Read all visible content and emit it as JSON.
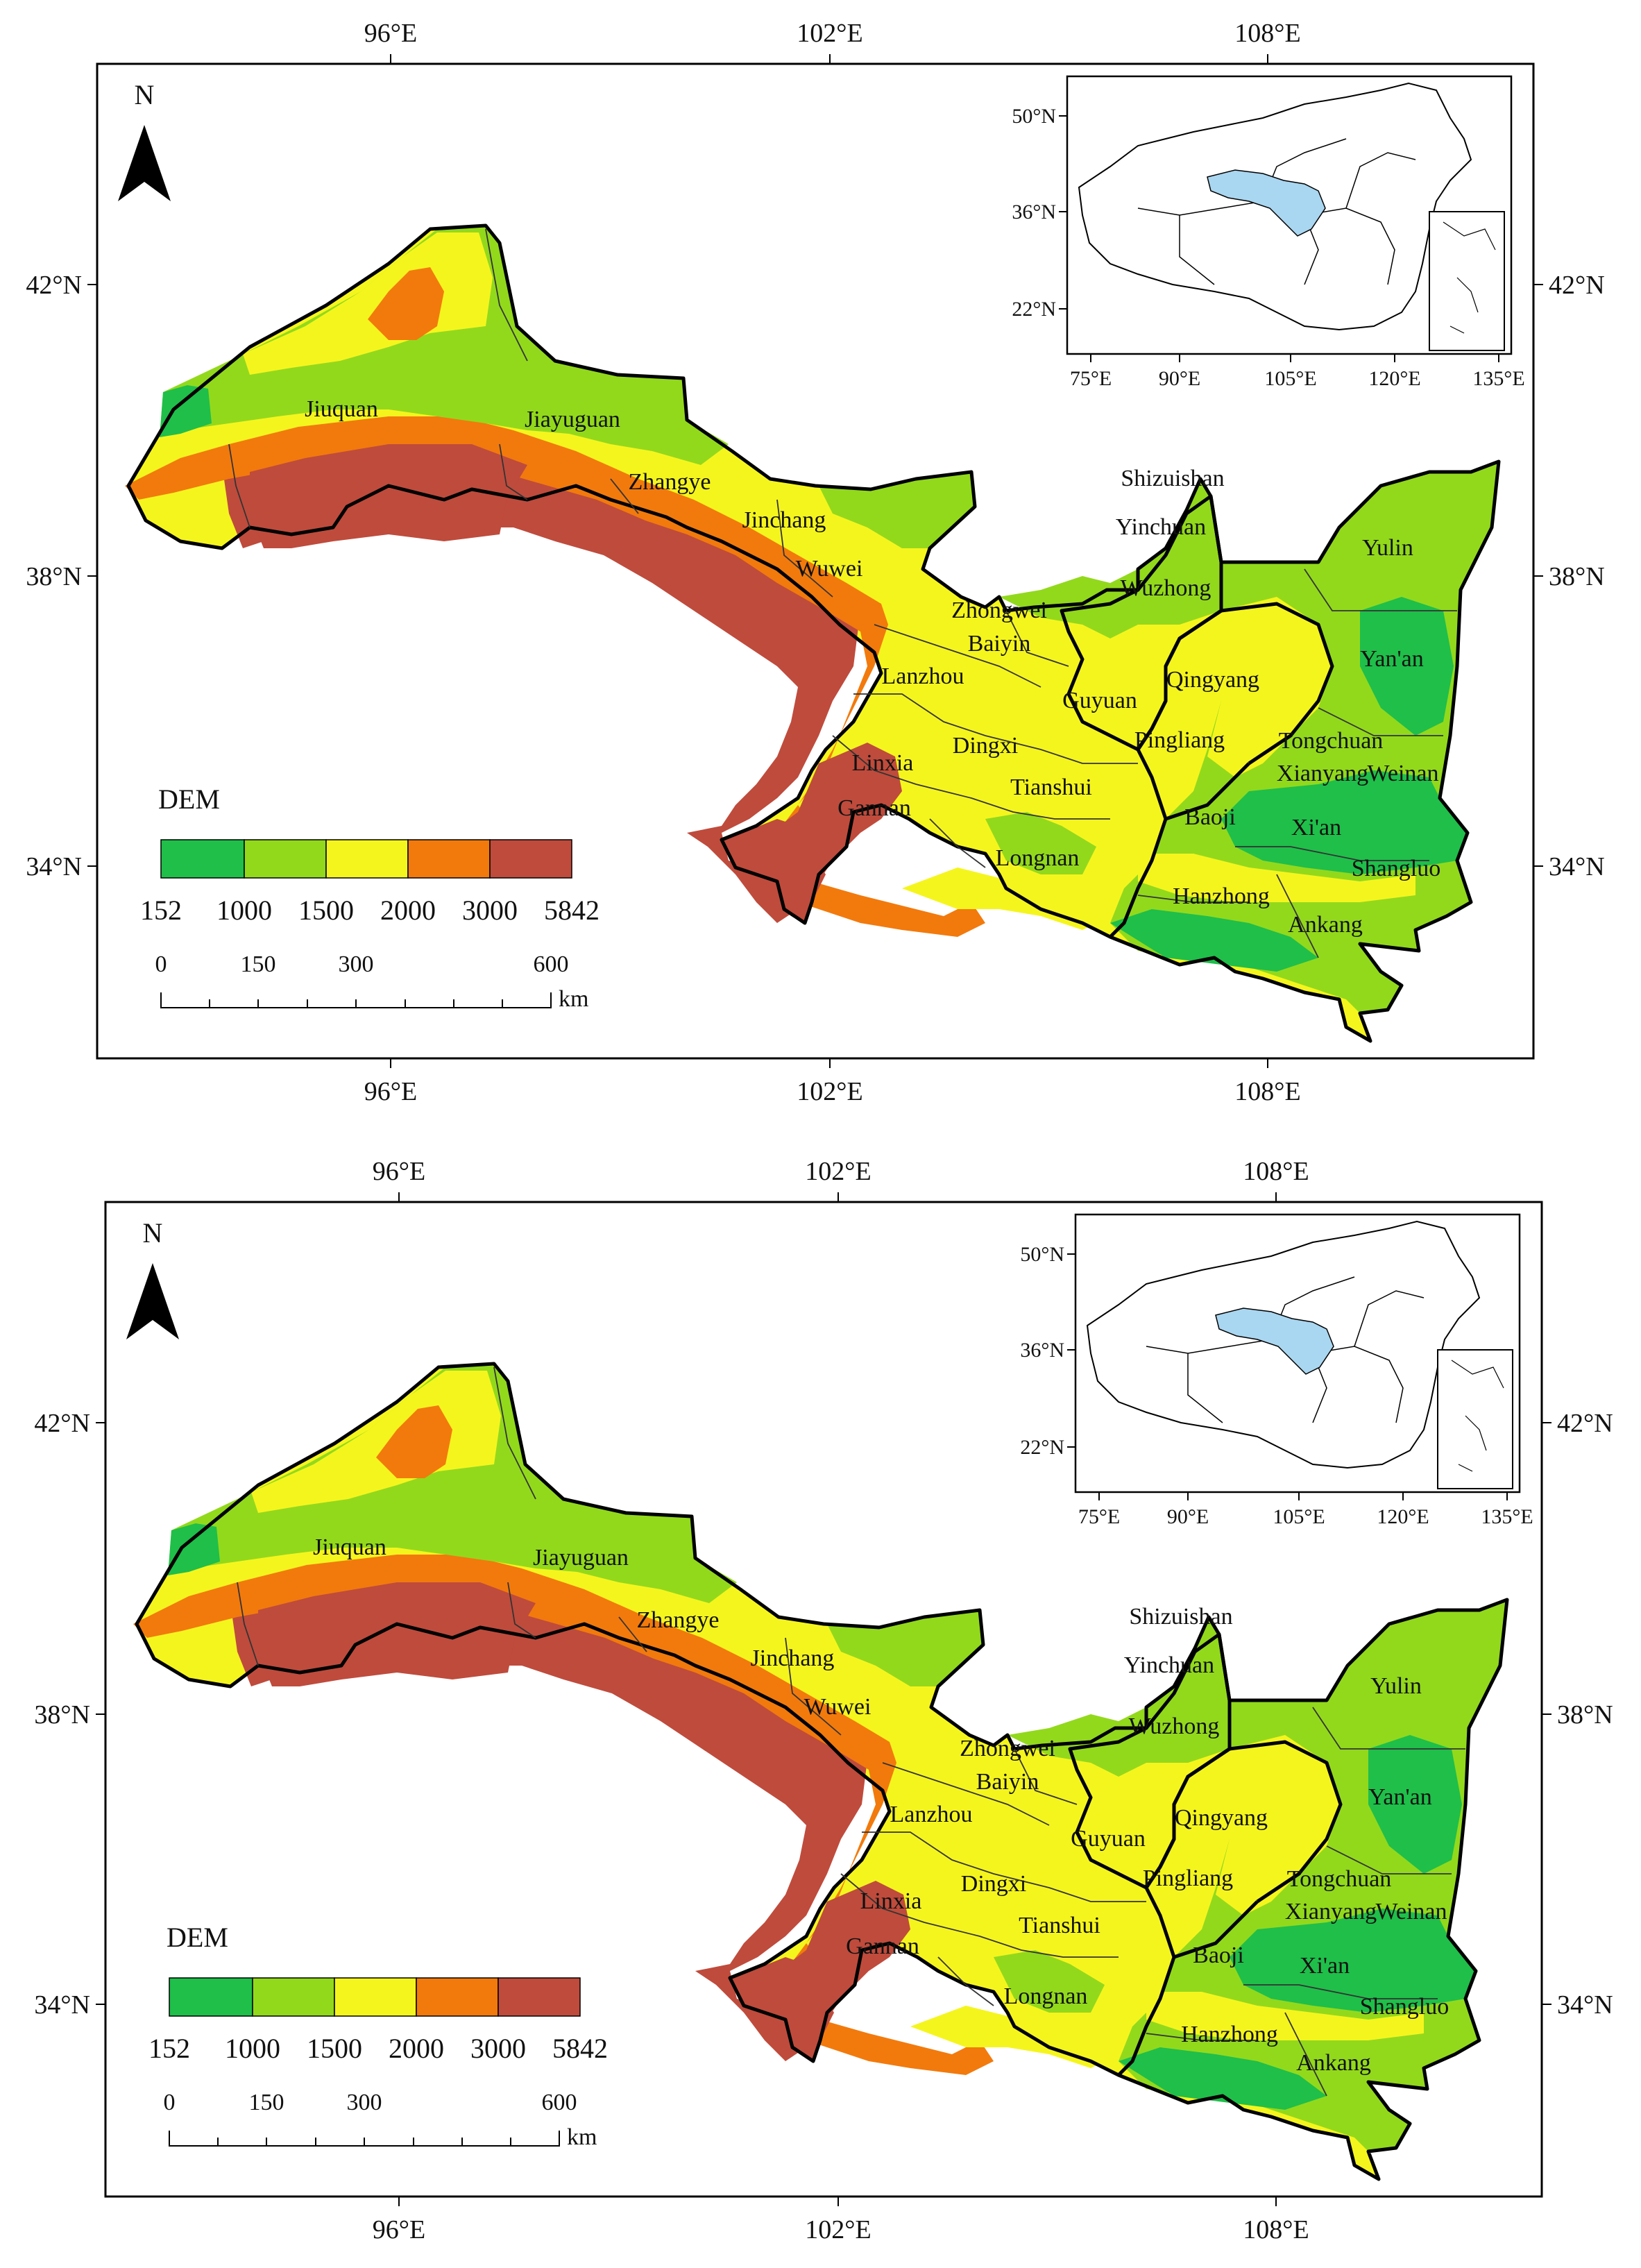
{
  "colors": {
    "c1": "#1fbf4a",
    "c2": "#92d91c",
    "c3": "#f5f51e",
    "c4": "#f27a0c",
    "c5": "#bf4b3c",
    "highlight": "#a9d6f0"
  },
  "north_arrow": {
    "label": "N"
  },
  "x_ticks": [
    "96°E",
    "102°E",
    "108°E"
  ],
  "y_ticks": [
    "42°N",
    "38°N",
    "34°N"
  ],
  "legend": {
    "title": "DEM",
    "breaks": [
      "152",
      "1000",
      "1500",
      "2000",
      "3000",
      "5842"
    ]
  },
  "scalebar": {
    "labels": [
      "0",
      "150",
      "300",
      "600"
    ],
    "unit": "km"
  },
  "inset": {
    "y_ticks": [
      "50°N",
      "36°N",
      "22°N"
    ],
    "x_ticks": [
      "75°E",
      "90°E",
      "105°E",
      "120°E",
      "135°E"
    ]
  },
  "cities": [
    "Jiuquan",
    "Jiayuguan",
    "Zhangye",
    "Jinchang",
    "Wuwei",
    "Zhongwei",
    "Baiyin",
    "Lanzhou",
    "Linxia",
    "Gannan",
    "Dingxi",
    "Tianshui",
    "Longnan",
    "Shizuishan",
    "Yinchuan",
    "Wuzhong",
    "Guyuan",
    "Qingyang",
    "Pingliang",
    "Yulin",
    "Yan'an",
    "Tongchuan",
    "Xianyang",
    "Weinan",
    "Baoji",
    "Xi'an",
    "Shangluo",
    "Hanzhong",
    "Ankang"
  ]
}
